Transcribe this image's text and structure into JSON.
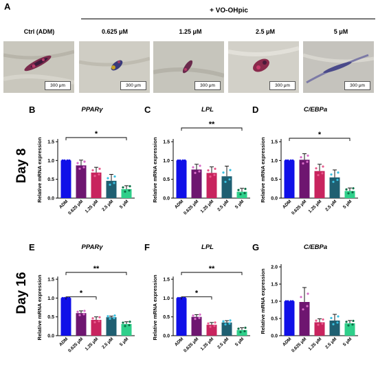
{
  "figure": {
    "panel_A_label": "A",
    "treatment_header": "+ VO-OHpic",
    "micrograph_labels": [
      "Ctrl (ADM)",
      "0.625 μM",
      "1.25 μM",
      "2.5 μM",
      "5 μM"
    ],
    "scale_bar": "300 μm",
    "day_labels": [
      "Day 8",
      "Day 16"
    ]
  },
  "chart_data": [
    {
      "panel": "B",
      "type": "bar",
      "title": "PPARγ",
      "ylabel": "Relative mRNA expression",
      "categories": [
        "ADM",
        "0.625 μM",
        "1.25 μM",
        "2.5 μM",
        "5 μM"
      ],
      "values": [
        1.0,
        0.87,
        0.68,
        0.46,
        0.24
      ],
      "errors": [
        0,
        0.14,
        0.14,
        0.17,
        0.09
      ],
      "ylim": [
        0,
        1.5
      ],
      "yticks": [
        "0.0",
        "0.5",
        "1.0",
        "1.5"
      ],
      "significance": [
        {
          "from": "ADM",
          "to": "5 μM",
          "label": "*"
        }
      ]
    },
    {
      "panel": "C",
      "type": "bar",
      "title": "LPL",
      "ylabel": "Relative mRNA expression",
      "categories": [
        "ADM",
        "0.625 μM",
        "1.25 μM",
        "2.5 μM",
        "5 μM"
      ],
      "values": [
        1.0,
        0.76,
        0.67,
        0.58,
        0.17
      ],
      "errors": [
        0,
        0.14,
        0.16,
        0.27,
        0.09
      ],
      "ylim": [
        0,
        1.5
      ],
      "yticks": [
        "0.0",
        "0.5",
        "1.0",
        "1.5"
      ],
      "significance": [
        {
          "from": "ADM",
          "to": "5 μM",
          "label": "**"
        }
      ]
    },
    {
      "panel": "D",
      "type": "bar",
      "title": "C/EBPa",
      "ylabel": "Relative mRNA expression",
      "categories": [
        "ADM",
        "0.625 μM",
        "1.25 μM",
        "2.5 μM",
        "5 μM"
      ],
      "values": [
        1.0,
        1.02,
        0.72,
        0.55,
        0.19
      ],
      "errors": [
        0,
        0.16,
        0.18,
        0.2,
        0.08
      ],
      "ylim": [
        0,
        1.5
      ],
      "yticks": [
        "0.0",
        "0.5",
        "1.0",
        "1.5"
      ],
      "significance": [
        {
          "from": "ADM",
          "to": "5 μM",
          "label": "*"
        }
      ]
    },
    {
      "panel": "E",
      "type": "bar",
      "title": "PPARγ",
      "ylabel": "Relative mRNA expression",
      "categories": [
        "ADM",
        "0.625 μM",
        "1.25 μM",
        "2.5 μM",
        "5 μM"
      ],
      "values": [
        1.0,
        0.6,
        0.42,
        0.49,
        0.31
      ],
      "errors": [
        0,
        0.06,
        0.08,
        0.03,
        0.06
      ],
      "ylim": [
        0,
        1.5
      ],
      "yticks": [
        "0.0",
        "0.5",
        "1.0",
        "1.5"
      ],
      "significance": [
        {
          "from": "ADM",
          "to": "1.25 μM",
          "label": "*"
        },
        {
          "from": "ADM",
          "to": "5 μM",
          "label": "**"
        }
      ]
    },
    {
      "panel": "F",
      "type": "bar",
      "title": "LPL",
      "ylabel": "Relative mRNA expression",
      "categories": [
        "ADM",
        "0.625 μM",
        "1.25 μM",
        "2.5 μM",
        "5 μM"
      ],
      "values": [
        1.0,
        0.5,
        0.29,
        0.35,
        0.15
      ],
      "errors": [
        0,
        0.06,
        0.06,
        0.05,
        0.06
      ],
      "ylim": [
        0,
        1.5
      ],
      "yticks": [
        "0.0",
        "0.5",
        "1.0",
        "1.5"
      ],
      "significance": [
        {
          "from": "ADM",
          "to": "1.25 μM",
          "label": "*"
        },
        {
          "from": "ADM",
          "to": "5 μM",
          "label": "**"
        }
      ]
    },
    {
      "panel": "G",
      "type": "bar",
      "title": "C/EBPa",
      "ylabel": "Relative mRNA expression",
      "categories": [
        "ADM",
        "0.625 μM",
        "1.25 μM",
        "2.5 μM",
        "5 μM"
      ],
      "values": [
        1.0,
        0.98,
        0.39,
        0.44,
        0.36
      ],
      "errors": [
        0,
        0.42,
        0.1,
        0.18,
        0.08
      ],
      "ylim": [
        0,
        2.0
      ],
      "yticks": [
        "0.0",
        "0.5",
        "1.0",
        "1.5",
        "2.0"
      ],
      "significance": []
    }
  ],
  "colors": {
    "bars": [
      "#1010e8",
      "#6e1670",
      "#c8245e",
      "#1f5f71",
      "#2fcf8a"
    ],
    "points": [
      "#1010e8",
      "#d86cc8",
      "#e85b8d",
      "#3ac0e0",
      "#0c6e46"
    ]
  }
}
